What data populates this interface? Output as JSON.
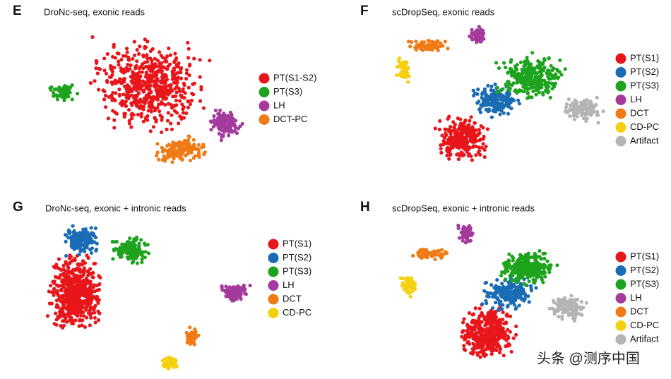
{
  "panels": [
    {
      "letter": "E",
      "title": "DroNc-seq, exonic reads",
      "legend": [
        {
          "label": "PT(S1-S2)",
          "color": "#e8161b"
        },
        {
          "label": "PT(S3)",
          "color": "#1ea31e"
        },
        {
          "label": "LH",
          "color": "#a43a9c"
        },
        {
          "label": "DCT-PC",
          "color": "#f07a15"
        }
      ]
    },
    {
      "letter": "F",
      "title": "scDropSeq, exonic reads",
      "legend": [
        {
          "label": "PT(S1)",
          "color": "#e8161b"
        },
        {
          "label": "PT(S2)",
          "color": "#1a6cb4"
        },
        {
          "label": "PT(S3)",
          "color": "#1ea31e"
        },
        {
          "label": "LH",
          "color": "#a43a9c"
        },
        {
          "label": "DCT",
          "color": "#f07a15"
        },
        {
          "label": "CD-PC",
          "color": "#f5d00f"
        },
        {
          "label": "Artifact",
          "color": "#b4b4b4"
        }
      ]
    },
    {
      "letter": "G",
      "title": "DroNc-seq, exonic + intronic reads",
      "legend": [
        {
          "label": "PT(S1)",
          "color": "#e8161b"
        },
        {
          "label": "PT(S2)",
          "color": "#1a6cb4"
        },
        {
          "label": "PT(S3)",
          "color": "#1ea31e"
        },
        {
          "label": "LH",
          "color": "#a43a9c"
        },
        {
          "label": "DCT",
          "color": "#f07a15"
        },
        {
          "label": "CD-PC",
          "color": "#f5d00f"
        }
      ]
    },
    {
      "letter": "H",
      "title": "scDropSeq, exonic + intronic reads",
      "legend": [
        {
          "label": "PT(S1)",
          "color": "#e8161b"
        },
        {
          "label": "PT(S2)",
          "color": "#1a6cb4"
        },
        {
          "label": "PT(S3)",
          "color": "#1ea31e"
        },
        {
          "label": "LH",
          "color": "#a43a9c"
        },
        {
          "label": "DCT",
          "color": "#f07a15"
        },
        {
          "label": "CD-PC",
          "color": "#f5d00f"
        },
        {
          "label": "Artifact",
          "color": "#b4b4b4"
        }
      ]
    }
  ],
  "watermark": "头条 @测序中国"
}
